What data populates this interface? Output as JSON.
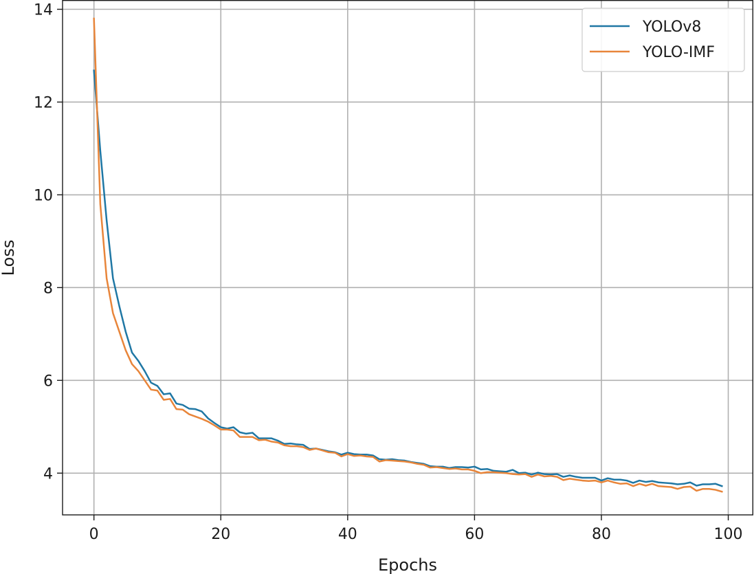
{
  "chart_data": {
    "type": "line",
    "title": "",
    "xlabel": "Epochs",
    "ylabel": "Loss",
    "xlim": [
      -4.95,
      103.95
    ],
    "ylim": [
      3.1,
      14.2
    ],
    "xticks": [
      0,
      20,
      40,
      60,
      80,
      100
    ],
    "yticks": [
      4,
      6,
      8,
      10,
      12,
      14
    ],
    "grid": true,
    "legend_position": "top-right",
    "series": [
      {
        "name": "YOLOv8",
        "color": "#1f77a4",
        "values": [
          12.68,
          10.95,
          9.45,
          8.2,
          7.6,
          7.05,
          6.6,
          6.42,
          6.2,
          5.95,
          5.88,
          5.7,
          5.72,
          5.5,
          5.47,
          5.39,
          5.38,
          5.33,
          5.18,
          5.08,
          4.99,
          4.96,
          4.99,
          4.88,
          4.85,
          4.87,
          4.75,
          4.75,
          4.75,
          4.7,
          4.63,
          4.64,
          4.62,
          4.61,
          4.52,
          4.53,
          4.5,
          4.47,
          4.45,
          4.4,
          4.44,
          4.41,
          4.4,
          4.4,
          4.38,
          4.3,
          4.29,
          4.3,
          4.28,
          4.27,
          4.24,
          4.22,
          4.2,
          4.15,
          4.14,
          4.14,
          4.11,
          4.13,
          4.13,
          4.12,
          4.14,
          4.08,
          4.09,
          4.05,
          4.04,
          4.03,
          4.07,
          4.0,
          4.01,
          3.97,
          4.01,
          3.98,
          3.97,
          3.98,
          3.92,
          3.95,
          3.92,
          3.9,
          3.9,
          3.9,
          3.84,
          3.89,
          3.86,
          3.86,
          3.84,
          3.79,
          3.84,
          3.81,
          3.83,
          3.8,
          3.79,
          3.78,
          3.76,
          3.77,
          3.8,
          3.73,
          3.76,
          3.76,
          3.77,
          3.72
        ]
      },
      {
        "name": "YOLO-IMF",
        "color": "#e8853a",
        "values": [
          13.8,
          9.8,
          8.2,
          7.45,
          7.05,
          6.65,
          6.35,
          6.2,
          6.0,
          5.8,
          5.78,
          5.58,
          5.6,
          5.38,
          5.37,
          5.27,
          5.22,
          5.17,
          5.11,
          5.03,
          4.94,
          4.94,
          4.92,
          4.78,
          4.78,
          4.78,
          4.71,
          4.72,
          4.68,
          4.66,
          4.6,
          4.58,
          4.58,
          4.56,
          4.5,
          4.53,
          4.49,
          4.45,
          4.44,
          4.36,
          4.41,
          4.37,
          4.38,
          4.36,
          4.35,
          4.25,
          4.28,
          4.27,
          4.26,
          4.25,
          4.23,
          4.2,
          4.18,
          4.12,
          4.13,
          4.11,
          4.09,
          4.1,
          4.08,
          4.08,
          4.05,
          4.0,
          4.02,
          4.02,
          4.01,
          4.0,
          3.98,
          3.97,
          3.98,
          3.92,
          3.97,
          3.93,
          3.94,
          3.92,
          3.85,
          3.88,
          3.86,
          3.84,
          3.83,
          3.84,
          3.8,
          3.84,
          3.8,
          3.77,
          3.78,
          3.72,
          3.77,
          3.73,
          3.77,
          3.72,
          3.71,
          3.7,
          3.66,
          3.7,
          3.71,
          3.62,
          3.66,
          3.66,
          3.64,
          3.6
        ]
      }
    ]
  }
}
